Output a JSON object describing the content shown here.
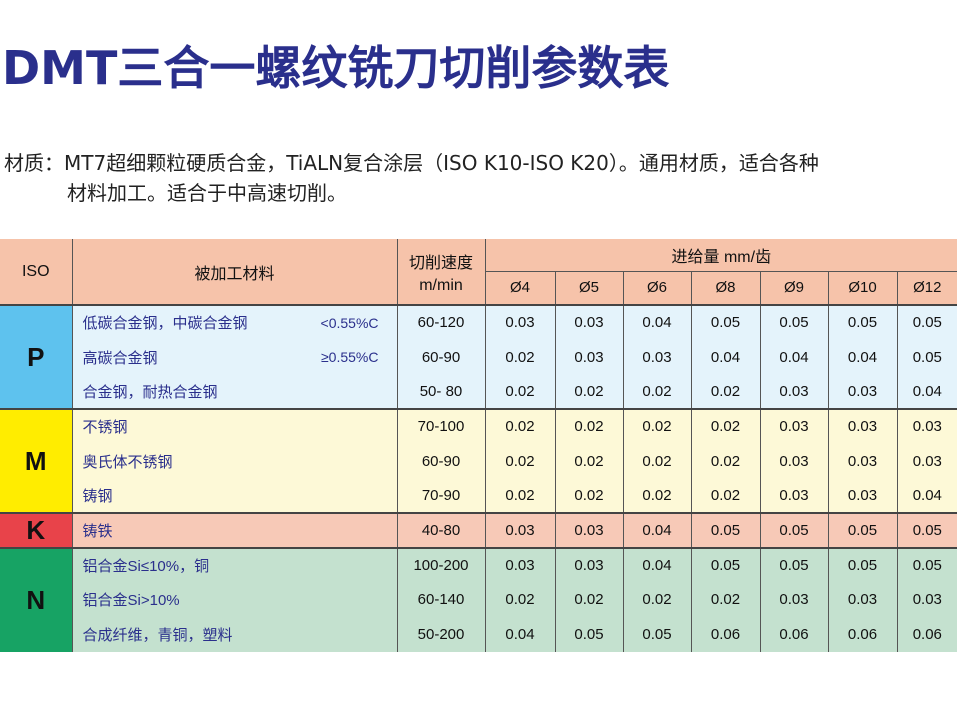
{
  "title": "DMT三合一螺纹铣刀切削参数表",
  "description": {
    "line1": "材质：MT7超细颗粒硬质合金，TiALN复合涂层（ISO K10-ISO K20）。通用材质，适合各种",
    "line2": "材料加工。适合于中高速切削。"
  },
  "table": {
    "headers": {
      "iso": "ISO",
      "material": "被加工材料",
      "speed": "切削速度",
      "speed_unit": "m/min",
      "feed": "进给量 mm/齿",
      "diameters": [
        "Ø4",
        "Ø5",
        "Ø6",
        "Ø8",
        "Ø9",
        "Ø10",
        "Ø12"
      ]
    },
    "groups": [
      {
        "iso": "P",
        "rows": [
          {
            "material": "低碳合金钢，中碳合金钢",
            "note": "<0.55%C",
            "speed": "60-120",
            "feeds": [
              "0.03",
              "0.03",
              "0.04",
              "0.05",
              "0.05",
              "0.05",
              "0.05"
            ]
          },
          {
            "material": "高碳合金钢",
            "note": "≥0.55%C",
            "speed": "60-90",
            "feeds": [
              "0.02",
              "0.03",
              "0.03",
              "0.04",
              "0.04",
              "0.04",
              "0.05"
            ]
          },
          {
            "material": "合金钢，耐热合金钢",
            "note": "",
            "speed": "50- 80",
            "feeds": [
              "0.02",
              "0.02",
              "0.02",
              "0.02",
              "0.03",
              "0.03",
              "0.04"
            ]
          }
        ]
      },
      {
        "iso": "M",
        "rows": [
          {
            "material": "不锈钢",
            "note": "",
            "speed": "70-100",
            "feeds": [
              "0.02",
              "0.02",
              "0.02",
              "0.02",
              "0.03",
              "0.03",
              "0.03"
            ]
          },
          {
            "material": "奥氏体不锈钢",
            "note": "",
            "speed": "60-90",
            "feeds": [
              "0.02",
              "0.02",
              "0.02",
              "0.02",
              "0.03",
              "0.03",
              "0.03"
            ]
          },
          {
            "material": "铸钢",
            "note": "",
            "speed": "70-90",
            "feeds": [
              "0.02",
              "0.02",
              "0.02",
              "0.02",
              "0.03",
              "0.03",
              "0.04"
            ]
          }
        ]
      },
      {
        "iso": "K",
        "rows": [
          {
            "material": "铸铁",
            "note": "",
            "speed": "40-80",
            "feeds": [
              "0.03",
              "0.03",
              "0.04",
              "0.05",
              "0.05",
              "0.05",
              "0.05"
            ]
          }
        ]
      },
      {
        "iso": "N",
        "rows": [
          {
            "material": "铝合金Si≤10%，铜",
            "note": "",
            "speed": "100-200",
            "feeds": [
              "0.03",
              "0.03",
              "0.04",
              "0.05",
              "0.05",
              "0.05",
              "0.05"
            ]
          },
          {
            "material": "铝合金Si>10%",
            "note": "",
            "speed": "60-140",
            "feeds": [
              "0.02",
              "0.02",
              "0.02",
              "0.02",
              "0.03",
              "0.03",
              "0.03"
            ]
          },
          {
            "material": "合成纤维，青铜，塑料",
            "note": "",
            "speed": "50-200",
            "feeds": [
              "0.04",
              "0.05",
              "0.05",
              "0.06",
              "0.06",
              "0.06",
              "0.06"
            ]
          }
        ]
      }
    ]
  },
  "colors": {
    "title": "#2a2f8c",
    "header_bg": "#f6c3aa",
    "P_badge": "#5ec2ee",
    "P_bg": "#e4f3fb",
    "M_badge": "#ffed00",
    "M_bg": "#fdf9d7",
    "K_badge": "#e8434a",
    "K_bg": "#f7c9b7",
    "N_badge": "#17a364",
    "N_bg": "#c4e1cf"
  }
}
